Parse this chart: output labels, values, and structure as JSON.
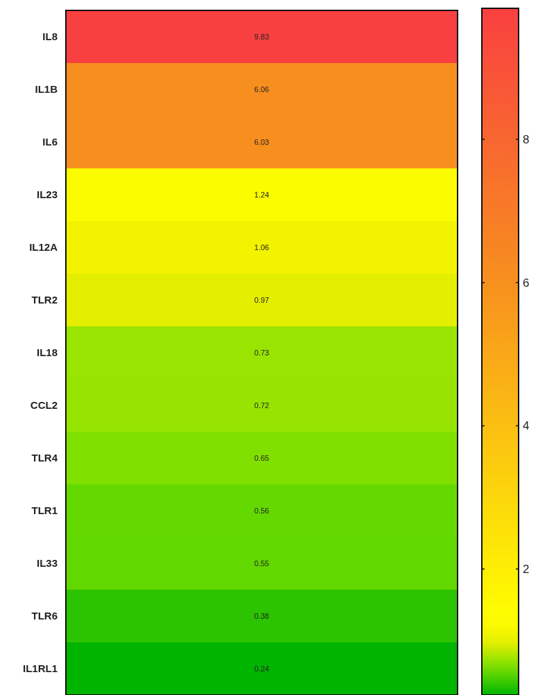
{
  "chart_data": {
    "type": "heatmap",
    "categories": [
      null
    ],
    "y_categories": [
      "IL8",
      "IL1B",
      "IL6",
      "IL23",
      "IL12A",
      "TLR2",
      "IL18",
      "CCL2",
      "TLR4",
      "TLR1",
      "IL33",
      "TLR6",
      "IL1RL1"
    ],
    "cells": [
      [
        9.83
      ],
      [
        6.06
      ],
      [
        6.03
      ],
      [
        1.24
      ],
      [
        1.06
      ],
      [
        0.97
      ],
      [
        0.73
      ],
      [
        0.72
      ],
      [
        0.65
      ],
      [
        0.56
      ],
      [
        0.55
      ],
      [
        0.38
      ],
      [
        0.24
      ]
    ],
    "data_labels": true,
    "clim": [
      0.24,
      9.83
    ],
    "cticks": [
      2,
      4,
      6,
      8
    ]
  }
}
